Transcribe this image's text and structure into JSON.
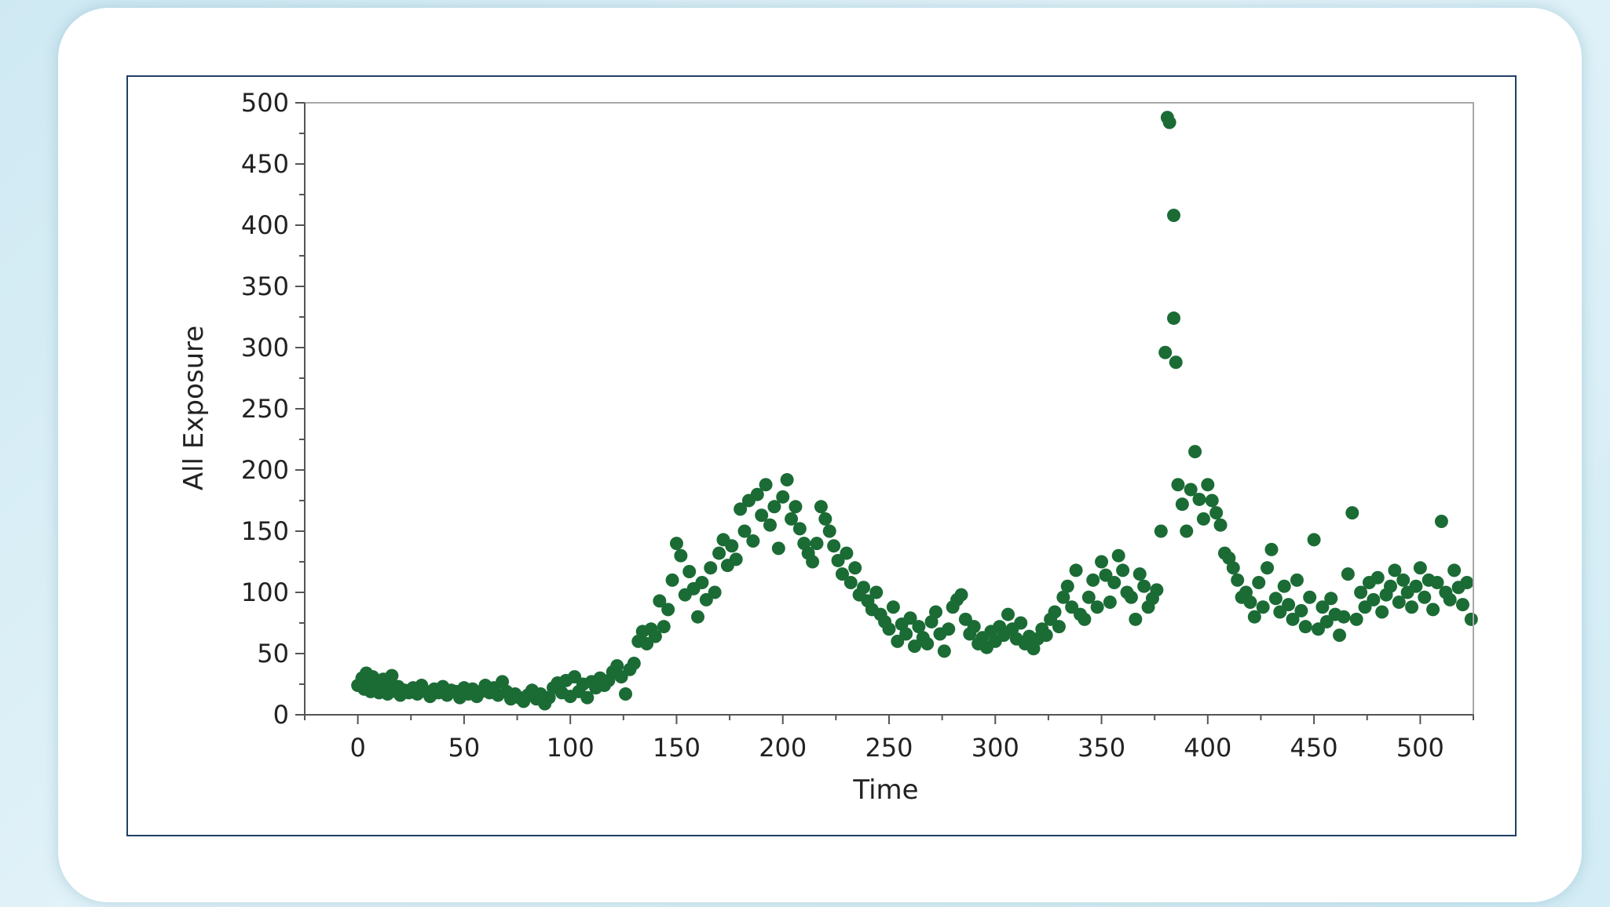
{
  "chart_data": {
    "type": "scatter",
    "title": "",
    "xlabel": "Time",
    "ylabel": "All Exposure",
    "xlim": [
      -25,
      525
    ],
    "ylim": [
      0,
      500
    ],
    "xticks": [
      0,
      50,
      100,
      150,
      200,
      250,
      300,
      350,
      400,
      450,
      500
    ],
    "yticks": [
      0,
      50,
      100,
      150,
      200,
      250,
      300,
      350,
      400,
      450,
      500
    ],
    "grid": false,
    "marker_color": "#1b6b35",
    "points": [
      [
        0,
        24
      ],
      [
        2,
        30
      ],
      [
        3,
        21
      ],
      [
        4,
        34
      ],
      [
        5,
        27
      ],
      [
        6,
        19
      ],
      [
        7,
        31
      ],
      [
        8,
        23
      ],
      [
        9,
        26
      ],
      [
        10,
        18
      ],
      [
        11,
        22
      ],
      [
        12,
        29
      ],
      [
        13,
        20
      ],
      [
        14,
        17
      ],
      [
        15,
        25
      ],
      [
        16,
        32
      ],
      [
        17,
        21
      ],
      [
        18,
        19
      ],
      [
        19,
        23
      ],
      [
        20,
        16
      ],
      [
        22,
        20
      ],
      [
        24,
        18
      ],
      [
        26,
        22
      ],
      [
        28,
        17
      ],
      [
        30,
        24
      ],
      [
        32,
        19
      ],
      [
        34,
        15
      ],
      [
        36,
        21
      ],
      [
        38,
        18
      ],
      [
        40,
        23
      ],
      [
        42,
        16
      ],
      [
        44,
        20
      ],
      [
        46,
        19
      ],
      [
        48,
        14
      ],
      [
        50,
        22
      ],
      [
        52,
        17
      ],
      [
        54,
        21
      ],
      [
        56,
        15
      ],
      [
        58,
        19
      ],
      [
        60,
        24
      ],
      [
        62,
        18
      ],
      [
        64,
        22
      ],
      [
        66,
        16
      ],
      [
        68,
        27
      ],
      [
        70,
        19
      ],
      [
        72,
        13
      ],
      [
        74,
        17
      ],
      [
        76,
        14
      ],
      [
        78,
        11
      ],
      [
        80,
        16
      ],
      [
        82,
        20
      ],
      [
        84,
        13
      ],
      [
        86,
        17
      ],
      [
        88,
        9
      ],
      [
        90,
        14
      ],
      [
        92,
        22
      ],
      [
        94,
        26
      ],
      [
        96,
        18
      ],
      [
        98,
        28
      ],
      [
        100,
        15
      ],
      [
        102,
        31
      ],
      [
        104,
        19
      ],
      [
        106,
        25
      ],
      [
        108,
        14
      ],
      [
        110,
        27
      ],
      [
        112,
        22
      ],
      [
        114,
        30
      ],
      [
        116,
        24
      ],
      [
        118,
        28
      ],
      [
        120,
        35
      ],
      [
        122,
        40
      ],
      [
        124,
        31
      ],
      [
        126,
        17
      ],
      [
        128,
        37
      ],
      [
        130,
        42
      ],
      [
        132,
        60
      ],
      [
        134,
        68
      ],
      [
        136,
        58
      ],
      [
        138,
        70
      ],
      [
        140,
        64
      ],
      [
        142,
        93
      ],
      [
        144,
        72
      ],
      [
        146,
        86
      ],
      [
        148,
        110
      ],
      [
        150,
        140
      ],
      [
        152,
        130
      ],
      [
        154,
        98
      ],
      [
        156,
        117
      ],
      [
        158,
        103
      ],
      [
        160,
        80
      ],
      [
        162,
        108
      ],
      [
        164,
        94
      ],
      [
        166,
        120
      ],
      [
        168,
        100
      ],
      [
        170,
        132
      ],
      [
        172,
        143
      ],
      [
        174,
        122
      ],
      [
        176,
        138
      ],
      [
        178,
        127
      ],
      [
        180,
        168
      ],
      [
        182,
        150
      ],
      [
        184,
        175
      ],
      [
        186,
        142
      ],
      [
        188,
        180
      ],
      [
        190,
        163
      ],
      [
        192,
        188
      ],
      [
        194,
        155
      ],
      [
        196,
        170
      ],
      [
        198,
        136
      ],
      [
        200,
        178
      ],
      [
        202,
        192
      ],
      [
        204,
        160
      ],
      [
        206,
        170
      ],
      [
        208,
        152
      ],
      [
        210,
        140
      ],
      [
        212,
        132
      ],
      [
        214,
        125
      ],
      [
        216,
        140
      ],
      [
        218,
        170
      ],
      [
        220,
        160
      ],
      [
        222,
        150
      ],
      [
        224,
        138
      ],
      [
        226,
        126
      ],
      [
        228,
        115
      ],
      [
        230,
        132
      ],
      [
        232,
        108
      ],
      [
        234,
        120
      ],
      [
        236,
        98
      ],
      [
        238,
        104
      ],
      [
        240,
        93
      ],
      [
        242,
        86
      ],
      [
        244,
        100
      ],
      [
        246,
        82
      ],
      [
        248,
        76
      ],
      [
        250,
        70
      ],
      [
        252,
        88
      ],
      [
        254,
        60
      ],
      [
        256,
        74
      ],
      [
        258,
        66
      ],
      [
        260,
        79
      ],
      [
        262,
        56
      ],
      [
        264,
        72
      ],
      [
        266,
        63
      ],
      [
        268,
        58
      ],
      [
        270,
        76
      ],
      [
        272,
        84
      ],
      [
        274,
        66
      ],
      [
        276,
        52
      ],
      [
        278,
        70
      ],
      [
        280,
        88
      ],
      [
        282,
        94
      ],
      [
        284,
        98
      ],
      [
        286,
        78
      ],
      [
        288,
        66
      ],
      [
        290,
        72
      ],
      [
        292,
        58
      ],
      [
        294,
        63
      ],
      [
        296,
        55
      ],
      [
        298,
        68
      ],
      [
        300,
        60
      ],
      [
        302,
        72
      ],
      [
        304,
        65
      ],
      [
        306,
        82
      ],
      [
        308,
        70
      ],
      [
        310,
        62
      ],
      [
        312,
        75
      ],
      [
        314,
        58
      ],
      [
        316,
        64
      ],
      [
        318,
        54
      ],
      [
        320,
        62
      ],
      [
        322,
        70
      ],
      [
        324,
        65
      ],
      [
        326,
        78
      ],
      [
        328,
        84
      ],
      [
        330,
        72
      ],
      [
        332,
        96
      ],
      [
        334,
        105
      ],
      [
        336,
        88
      ],
      [
        338,
        118
      ],
      [
        340,
        82
      ],
      [
        342,
        78
      ],
      [
        344,
        96
      ],
      [
        346,
        110
      ],
      [
        348,
        88
      ],
      [
        350,
        125
      ],
      [
        352,
        114
      ],
      [
        354,
        92
      ],
      [
        356,
        108
      ],
      [
        358,
        130
      ],
      [
        360,
        118
      ],
      [
        362,
        100
      ],
      [
        364,
        96
      ],
      [
        366,
        78
      ],
      [
        368,
        115
      ],
      [
        370,
        105
      ],
      [
        372,
        88
      ],
      [
        374,
        95
      ],
      [
        376,
        102
      ],
      [
        378,
        150
      ],
      [
        380,
        296
      ],
      [
        381,
        488
      ],
      [
        382,
        484
      ],
      [
        384,
        408
      ],
      [
        384,
        324
      ],
      [
        385,
        288
      ],
      [
        386,
        188
      ],
      [
        388,
        172
      ],
      [
        390,
        150
      ],
      [
        392,
        184
      ],
      [
        394,
        215
      ],
      [
        396,
        176
      ],
      [
        398,
        160
      ],
      [
        400,
        188
      ],
      [
        402,
        175
      ],
      [
        404,
        165
      ],
      [
        406,
        155
      ],
      [
        408,
        132
      ],
      [
        410,
        128
      ],
      [
        412,
        120
      ],
      [
        414,
        110
      ],
      [
        416,
        96
      ],
      [
        418,
        100
      ],
      [
        420,
        92
      ],
      [
        422,
        80
      ],
      [
        424,
        108
      ],
      [
        426,
        88
      ],
      [
        428,
        120
      ],
      [
        430,
        135
      ],
      [
        432,
        95
      ],
      [
        434,
        84
      ],
      [
        436,
        105
      ],
      [
        438,
        90
      ],
      [
        440,
        78
      ],
      [
        442,
        110
      ],
      [
        444,
        85
      ],
      [
        446,
        72
      ],
      [
        448,
        96
      ],
      [
        450,
        143
      ],
      [
        452,
        70
      ],
      [
        454,
        88
      ],
      [
        456,
        76
      ],
      [
        458,
        95
      ],
      [
        460,
        82
      ],
      [
        462,
        65
      ],
      [
        464,
        80
      ],
      [
        466,
        115
      ],
      [
        468,
        165
      ],
      [
        470,
        78
      ],
      [
        472,
        100
      ],
      [
        474,
        88
      ],
      [
        476,
        108
      ],
      [
        478,
        94
      ],
      [
        480,
        112
      ],
      [
        482,
        84
      ],
      [
        484,
        98
      ],
      [
        486,
        105
      ],
      [
        488,
        118
      ],
      [
        490,
        92
      ],
      [
        492,
        110
      ],
      [
        494,
        100
      ],
      [
        496,
        88
      ],
      [
        498,
        105
      ],
      [
        500,
        120
      ],
      [
        502,
        96
      ],
      [
        504,
        110
      ],
      [
        506,
        86
      ],
      [
        508,
        108
      ],
      [
        510,
        158
      ],
      [
        512,
        100
      ],
      [
        514,
        94
      ],
      [
        516,
        118
      ],
      [
        518,
        104
      ],
      [
        520,
        90
      ],
      [
        522,
        108
      ],
      [
        524,
        78
      ]
    ]
  }
}
